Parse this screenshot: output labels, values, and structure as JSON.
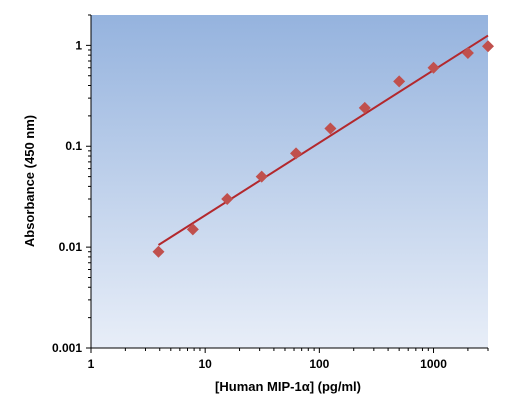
{
  "chart_data": {
    "type": "scatter",
    "xlabel": "[Human MIP-1α] (pg/ml)",
    "ylabel": "Absorbance (450 nm)",
    "x_scale": "log",
    "y_scale": "log",
    "xlim": [
      1,
      3000
    ],
    "ylim": [
      0.001,
      2
    ],
    "x_ticks": [
      1,
      10,
      100,
      1000
    ],
    "x_tick_labels": [
      "1",
      "10",
      "100",
      "1000"
    ],
    "y_ticks": [
      0.001,
      0.01,
      0.1,
      1
    ],
    "y_tick_labels": [
      "0.001",
      "0.01",
      "0.1",
      "1"
    ],
    "grid": false,
    "legend": "none",
    "colors": {
      "marker": "#c0504d",
      "fit_line": "#b3282d",
      "plot_bg_top": "#95b3de",
      "plot_bg_bottom": "#e8eef8",
      "axis": "#000000"
    },
    "series": [
      {
        "type": "scatter",
        "marker": "diamond",
        "x": [
          3.9,
          7.8,
          15.6,
          31.25,
          62.5,
          125,
          250,
          500,
          1000,
          2000,
          3000
        ],
        "y": [
          0.009,
          0.015,
          0.03,
          0.05,
          0.085,
          0.15,
          0.24,
          0.44,
          0.6,
          0.84,
          0.98
        ]
      },
      {
        "type": "line",
        "x": [
          3.9,
          3000
        ],
        "y": [
          0.0105,
          1.25
        ]
      }
    ]
  }
}
